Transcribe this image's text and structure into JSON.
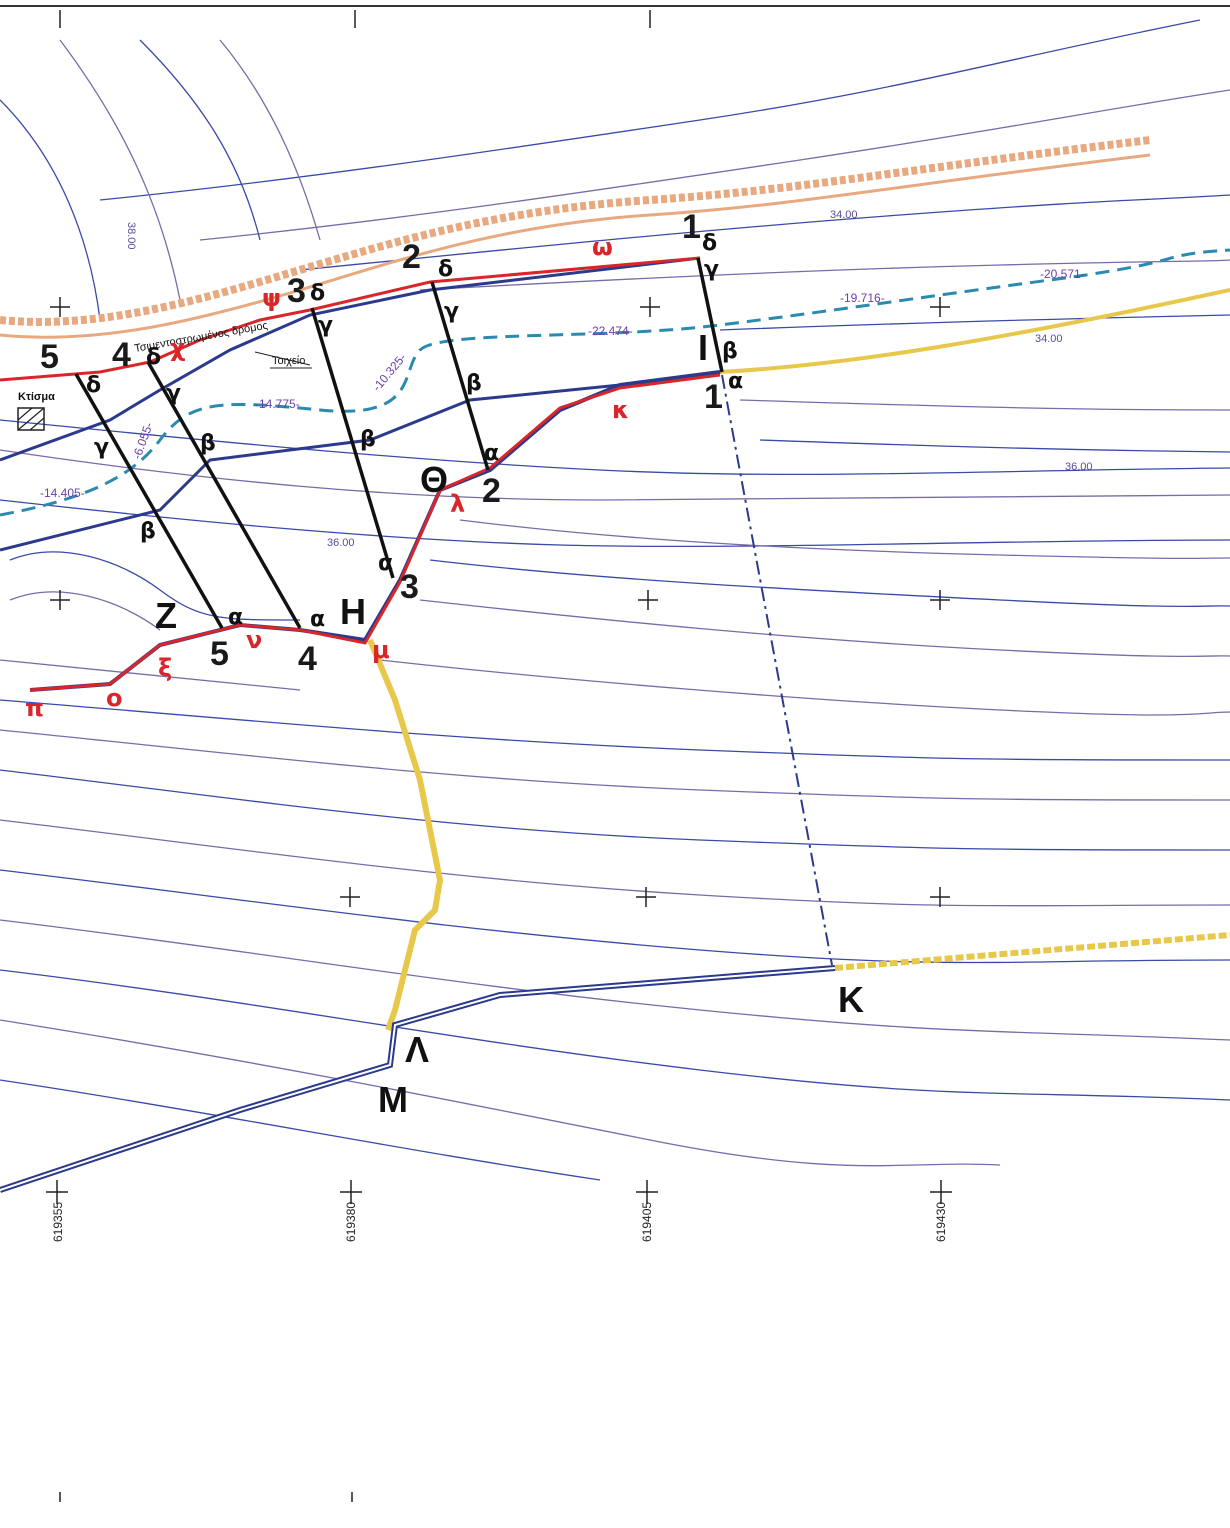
{
  "map": {
    "road_label": "Τσιμεντοστρωμένος δρόμος",
    "wall_label": "Τοιχείο",
    "building_label": "Κτίσμα",
    "big_points": [
      "Z",
      "H",
      "Θ",
      "I",
      "K",
      "Λ",
      "M"
    ],
    "strip_numbers": [
      "1",
      "2",
      "3",
      "4",
      "5"
    ],
    "corner_letters": [
      "α",
      "β",
      "γ",
      "δ"
    ],
    "boundary_letters": [
      "κ",
      "λ",
      "μ",
      "ν",
      "ξ",
      "ο",
      "π",
      "χ",
      "ψ",
      "ω"
    ],
    "elevation_labels": [
      "34.00",
      "36.00",
      "38.00"
    ],
    "distance_labels": [
      "-20.571-",
      "-19.716-",
      "-22.474-",
      "-10.325-",
      "-14.775-",
      "-14.405-",
      "-6.055-"
    ],
    "grid_coordinates": [
      "619355",
      "619380",
      "619405",
      "619430"
    ],
    "colors": {
      "parcel_boundary": "#d8262a",
      "subdivision_line": "#2b3a8c",
      "strip_line": "#111111",
      "contour_blue": "#3a4aa8",
      "contour_purple": "#7a6aa8",
      "dashed_line": "#2b8ab0",
      "road_hatch": "#e8a880",
      "yellow_path": "#e8c84a"
    }
  }
}
